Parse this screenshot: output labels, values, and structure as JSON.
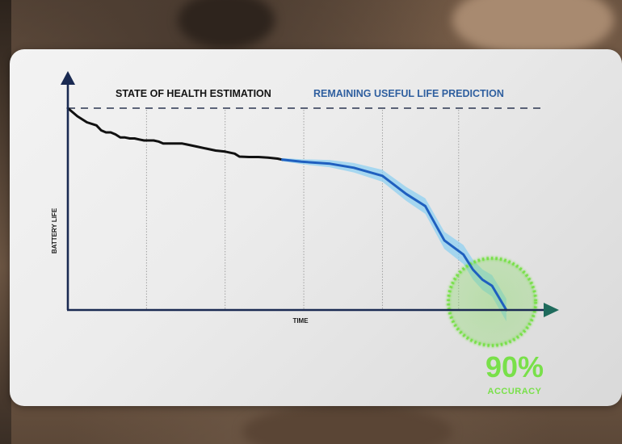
{
  "chart_data": {
    "type": "line",
    "title_left": "STATE OF HEALTH ESTIMATION",
    "title_right": "REMAINING USEFUL LIFE PREDICTION",
    "xlabel": "TIME",
    "ylabel": "BATTERY LIFE",
    "xlim": [
      0,
      100
    ],
    "ylim": [
      0,
      100
    ],
    "threshold_y": 100,
    "gridlines_x": [
      16.5,
      33,
      49.5,
      66,
      82
    ],
    "series": [
      {
        "role": "estimation",
        "color": "#111111",
        "points": [
          [
            0,
            100
          ],
          [
            2,
            96
          ],
          [
            4,
            93
          ],
          [
            6,
            91.5
          ],
          [
            7,
            89
          ],
          [
            8,
            88
          ],
          [
            9,
            88
          ],
          [
            10,
            87
          ],
          [
            11,
            85.5
          ],
          [
            12,
            85.5
          ],
          [
            13,
            85
          ],
          [
            14,
            85
          ],
          [
            15,
            84.5
          ],
          [
            16,
            84
          ],
          [
            17,
            84
          ],
          [
            18,
            84
          ],
          [
            19,
            83.5
          ],
          [
            20,
            82.5
          ],
          [
            22,
            82.5
          ],
          [
            24,
            82.5
          ],
          [
            25,
            82
          ],
          [
            27,
            81
          ],
          [
            29,
            80
          ],
          [
            31,
            79
          ],
          [
            33,
            78.5
          ],
          [
            35,
            77.5
          ],
          [
            36,
            76
          ],
          [
            38,
            75.8
          ],
          [
            40,
            75.8
          ],
          [
            42,
            75.5
          ],
          [
            44,
            75
          ],
          [
            45,
            74.5
          ]
        ]
      },
      {
        "role": "prediction",
        "color": "#1f5fbf",
        "band_color": "#8fd0f2",
        "points": [
          [
            45,
            74.5
          ],
          [
            49,
            73.5
          ],
          [
            55,
            72.5
          ],
          [
            60,
            70.5
          ],
          [
            66,
            66.5
          ],
          [
            71,
            57.5
          ],
          [
            75,
            51.5
          ],
          [
            79,
            34.5
          ],
          [
            83,
            27.5
          ],
          [
            85,
            20
          ],
          [
            87,
            15
          ],
          [
            89,
            12
          ],
          [
            92,
            0
          ]
        ]
      }
    ],
    "highlight": {
      "center": [
        89,
        4
      ],
      "value": "90%",
      "label": "ACCURACY",
      "color": "#79e04a"
    },
    "colors": {
      "axis": "#1a2a52",
      "dashed": "#2a3550",
      "grid": "#9a9a9a"
    }
  }
}
